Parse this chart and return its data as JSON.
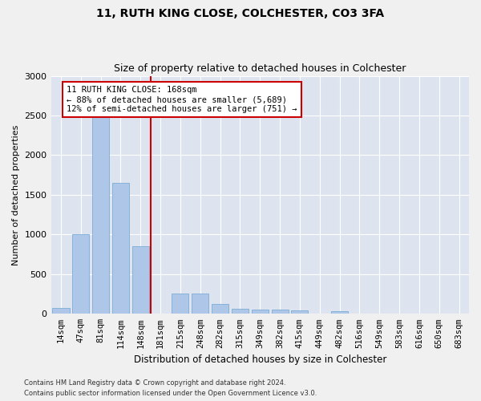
{
  "title1": "11, RUTH KING CLOSE, COLCHESTER, CO3 3FA",
  "title2": "Size of property relative to detached houses in Colchester",
  "xlabel": "Distribution of detached houses by size in Colchester",
  "ylabel": "Number of detached properties",
  "categories": [
    "14sqm",
    "47sqm",
    "81sqm",
    "114sqm",
    "148sqm",
    "181sqm",
    "215sqm",
    "248sqm",
    "282sqm",
    "315sqm",
    "349sqm",
    "382sqm",
    "415sqm",
    "449sqm",
    "482sqm",
    "516sqm",
    "549sqm",
    "583sqm",
    "616sqm",
    "650sqm",
    "683sqm"
  ],
  "values": [
    75,
    1000,
    2480,
    1650,
    850,
    0,
    260,
    260,
    125,
    60,
    55,
    50,
    40,
    0,
    30,
    0,
    0,
    0,
    0,
    0,
    0
  ],
  "bar_color": "#aec6e8",
  "bar_edge_color": "#7aadd4",
  "vline_x": 5.0,
  "vline_color": "#cc0000",
  "annotation_text": "11 RUTH KING CLOSE: 168sqm\n← 88% of detached houses are smaller (5,689)\n12% of semi-detached houses are larger (751) →",
  "annotation_box_color": "#cc0000",
  "ylim": [
    0,
    3000
  ],
  "yticks": [
    0,
    500,
    1000,
    1500,
    2000,
    2500,
    3000
  ],
  "background_color": "#dde4f0",
  "grid_color": "#ffffff",
  "footer1": "Contains HM Land Registry data © Crown copyright and database right 2024.",
  "footer2": "Contains public sector information licensed under the Open Government Licence v3.0."
}
